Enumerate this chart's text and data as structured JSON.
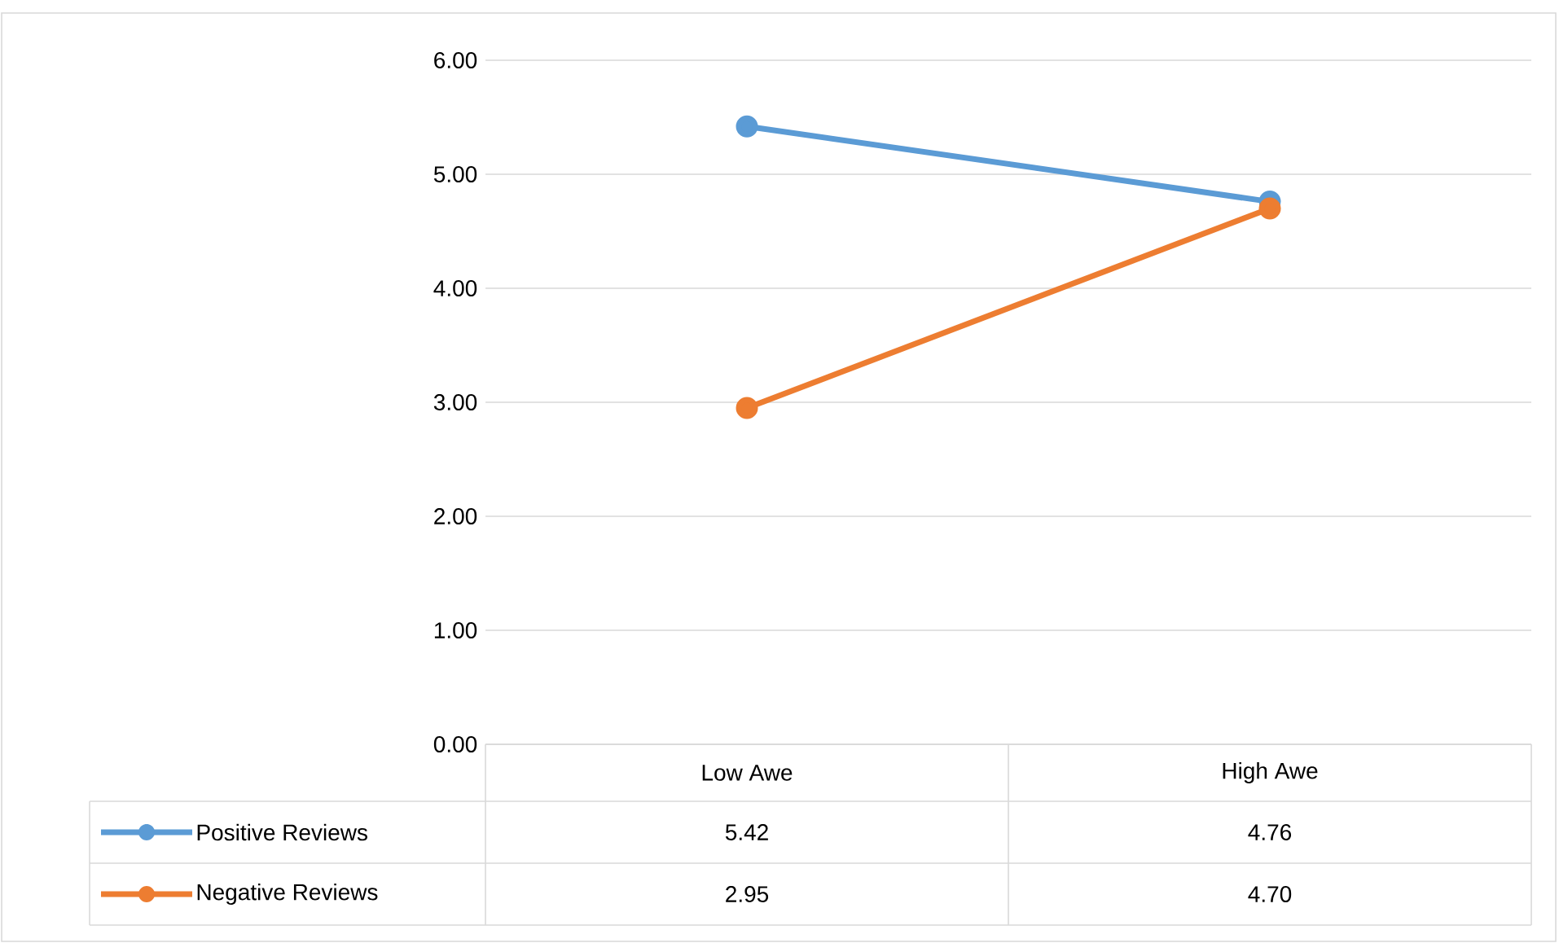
{
  "chart_data": {
    "type": "line",
    "categories": [
      "Low Awe",
      "High Awe"
    ],
    "series": [
      {
        "name": "Positive Reviews",
        "color": "#5b9bd5",
        "values": [
          5.42,
          4.76
        ],
        "value_labels": [
          "5.42",
          "4.76"
        ]
      },
      {
        "name": "Negative Reviews",
        "color": "#ed7d31",
        "values": [
          2.95,
          4.7
        ],
        "value_labels": [
          "2.95",
          "4.70"
        ]
      }
    ],
    "ylim": [
      0,
      6
    ],
    "yticks": [
      {
        "value": 0,
        "label": "0.00"
      },
      {
        "value": 1,
        "label": "1.00"
      },
      {
        "value": 2,
        "label": "2.00"
      },
      {
        "value": 3,
        "label": "3.00"
      },
      {
        "value": 4,
        "label": "4.00"
      },
      {
        "value": 5,
        "label": "5.00"
      },
      {
        "value": 6,
        "label": "6.00"
      }
    ],
    "grid": "y",
    "legend": "bottom",
    "marker": "circle",
    "line_style": "solid"
  }
}
